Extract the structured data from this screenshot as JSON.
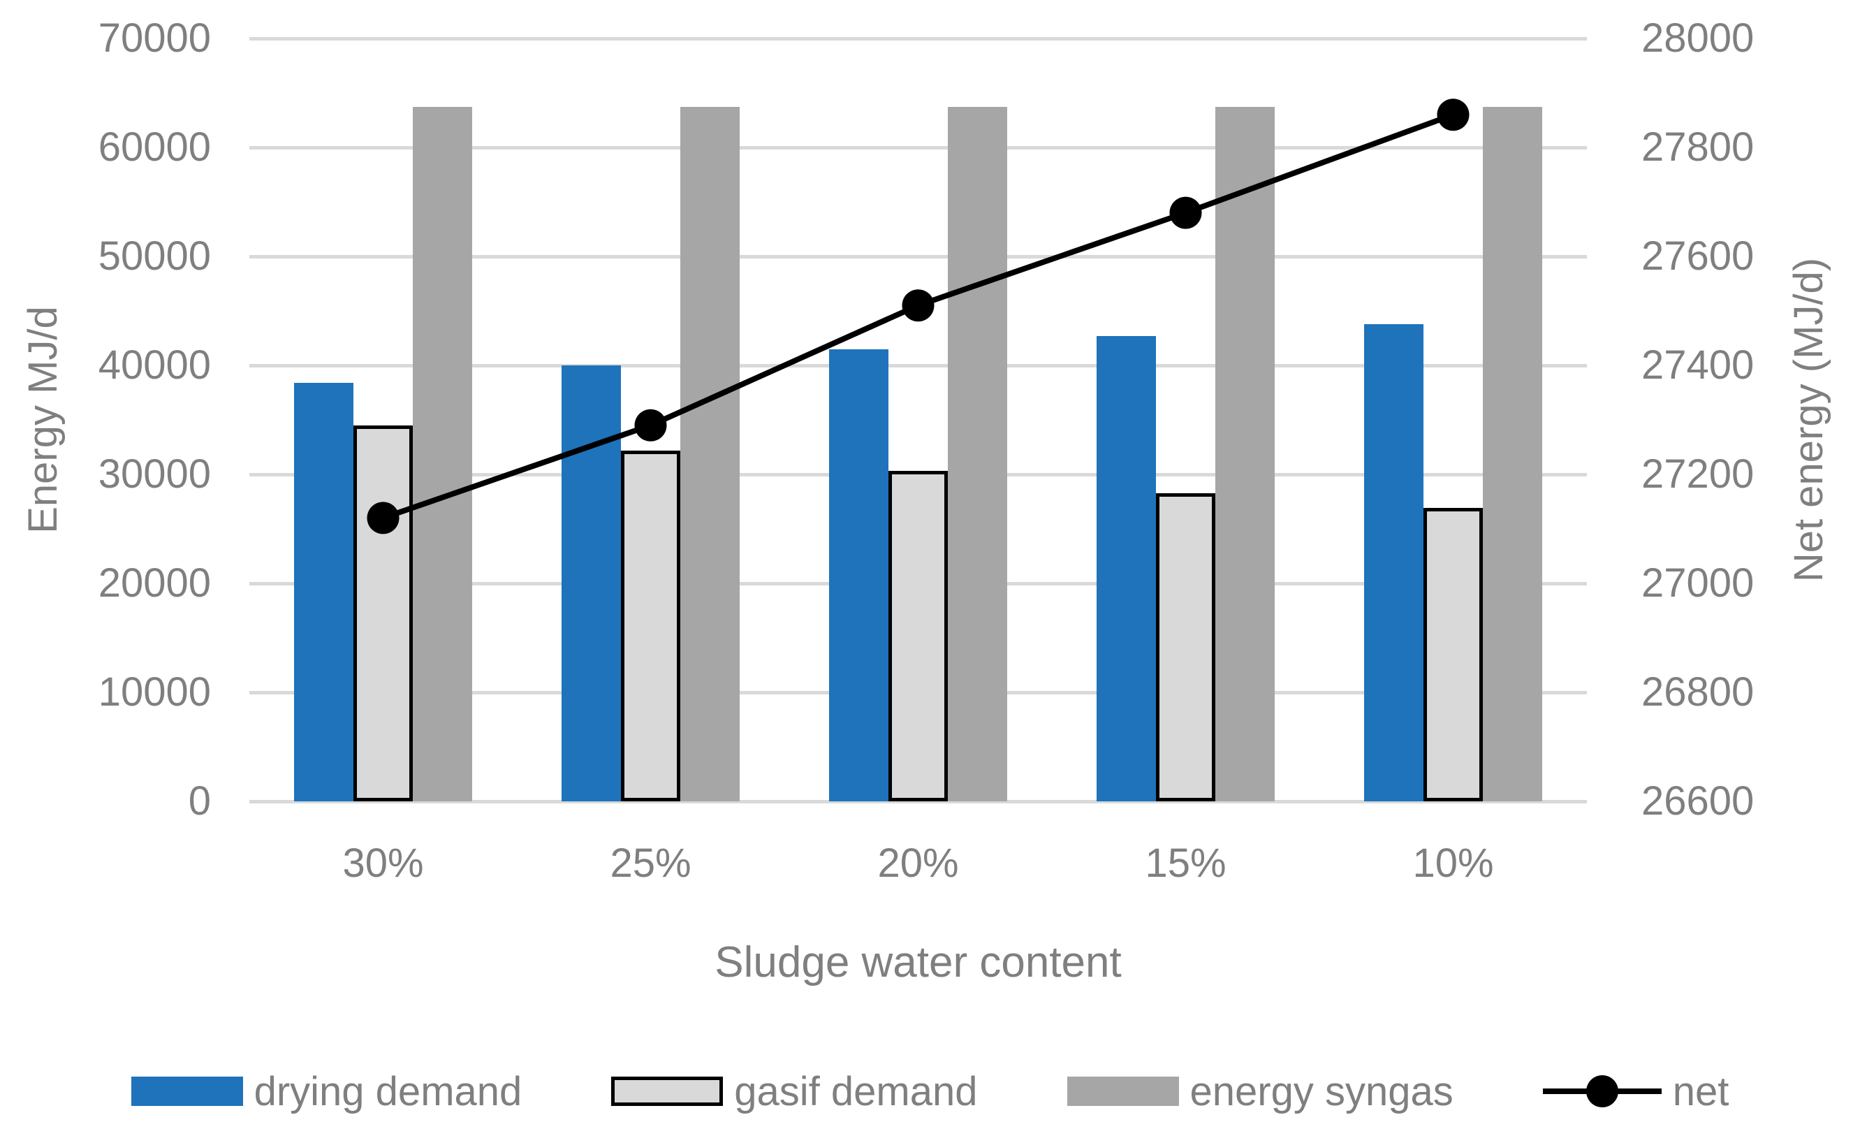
{
  "chart_data": {
    "type": "bar",
    "subtype": "grouped-bars-with-line-overlay",
    "title": "",
    "categories": [
      "30%",
      "25%",
      "20%",
      "15%",
      "10%"
    ],
    "x_axis": {
      "label": "Sludge water content"
    },
    "left_axis": {
      "label": "Energy MJ/d",
      "min": 0,
      "max": 70000,
      "tick_step": 10000,
      "ticks": [
        0,
        10000,
        20000,
        30000,
        40000,
        50000,
        60000,
        70000
      ]
    },
    "right_axis": {
      "label": "Net energy (MJ/d)",
      "min": 26600,
      "max": 28000,
      "tick_step": 200,
      "ticks": [
        26600,
        26800,
        27000,
        27200,
        27400,
        27600,
        27800,
        28000
      ]
    },
    "bar_series": [
      {
        "name": "drying demand",
        "color": "#1e73bb",
        "border": null,
        "axis": "left",
        "values": [
          38400,
          40000,
          41500,
          42700,
          43800
        ]
      },
      {
        "name": "gasif demand",
        "color": "#d9d9d9",
        "border": "#000000",
        "axis": "left",
        "values": [
          34500,
          32200,
          30300,
          28300,
          26900
        ]
      },
      {
        "name": "energy syngas",
        "color": "#a6a6a6",
        "border": null,
        "axis": "left",
        "values": [
          63700,
          63700,
          63700,
          63700,
          63700
        ]
      }
    ],
    "line_series": [
      {
        "name": "net",
        "color": "#000000",
        "marker": "circle",
        "axis": "right",
        "values": [
          27120,
          27290,
          27510,
          27680,
          27860
        ]
      }
    ],
    "legend": {
      "position": "bottom",
      "entries": [
        "drying demand",
        "gasif demand",
        "energy syngas",
        "net"
      ]
    },
    "grid": {
      "show": true,
      "color": "#d9d9d9"
    }
  }
}
